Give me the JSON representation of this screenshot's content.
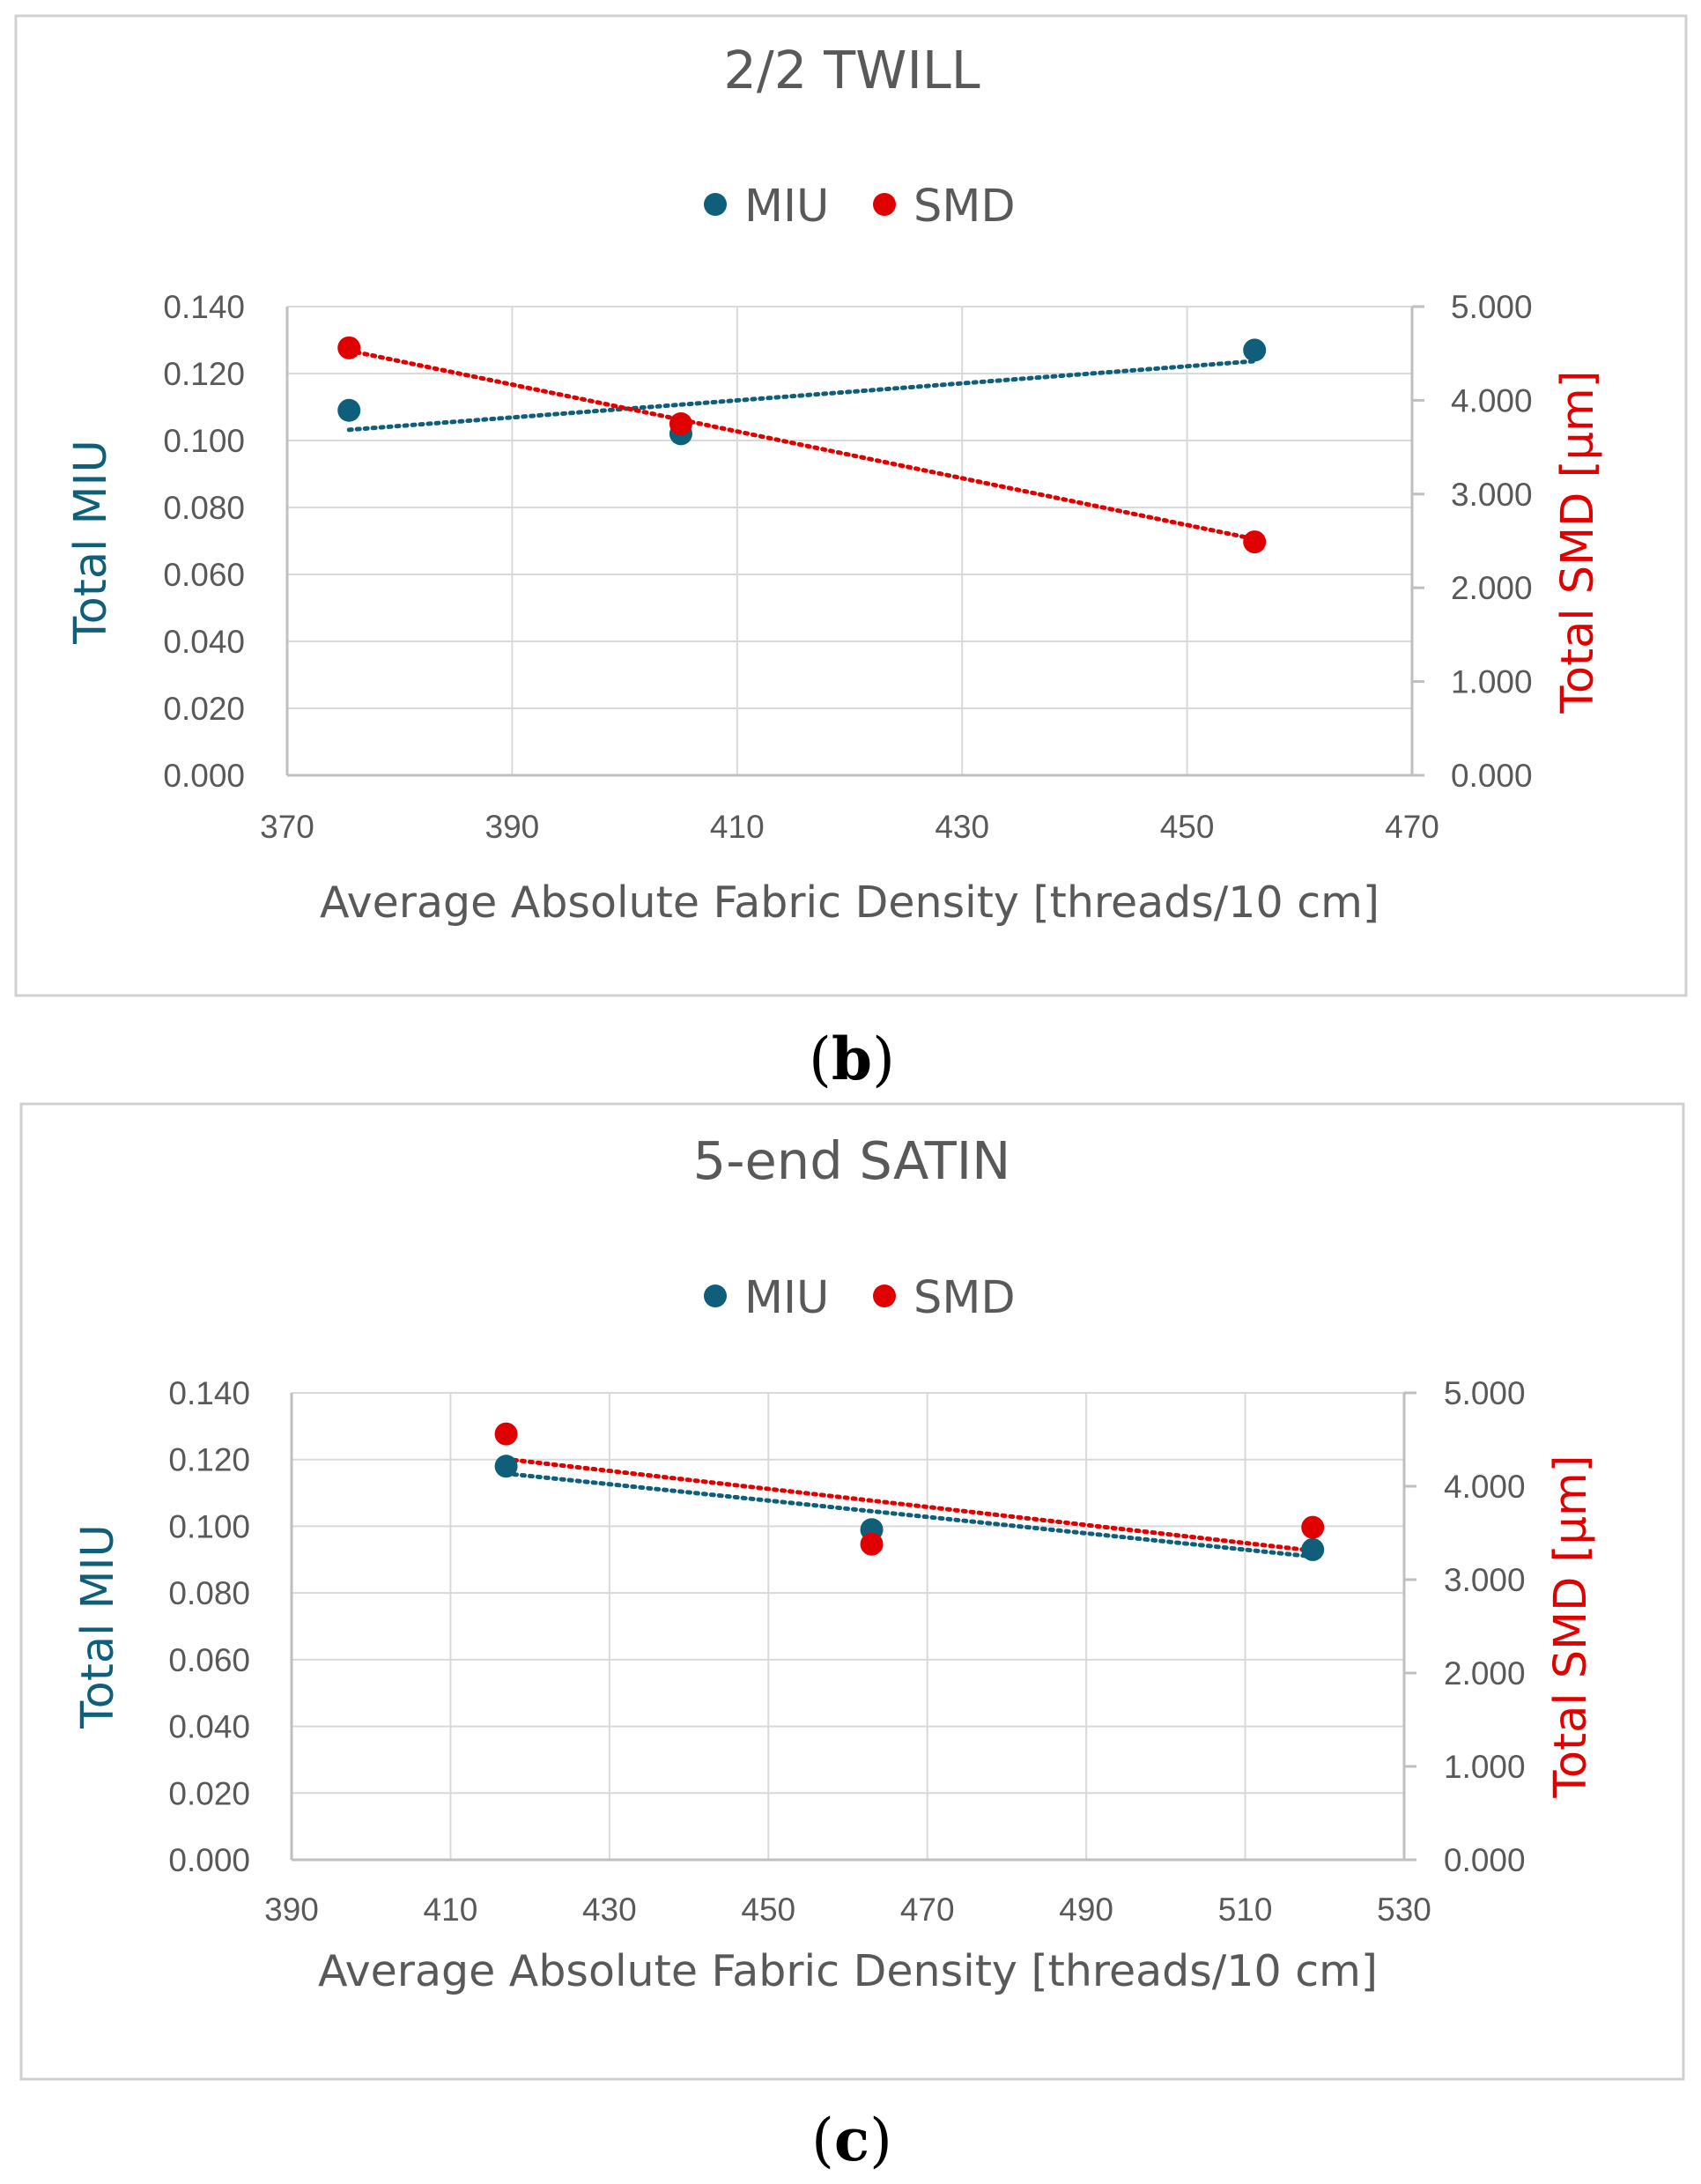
{
  "colors": {
    "miu": "#0f5f7a",
    "smd": "#e00000",
    "grid": "#d9d9d9",
    "frame": "#d0d0d0",
    "text": "#595959"
  },
  "chart_data": [
    {
      "type": "scatter",
      "title": "2/2 TWILL",
      "caption": {
        "open": "(",
        "letter": "b",
        "close": ")"
      },
      "legend": [
        "MIU",
        "SMD"
      ],
      "legend_position": "top-center",
      "grid": true,
      "xlabel": "Average Absolute Fabric Density [threads/10 cm]",
      "ylabel_left": "Total MIU",
      "ylabel_right": "Total SMD  [µm]",
      "xlim": [
        370,
        470
      ],
      "ylim_left": [
        0,
        0.14
      ],
      "ylim_right": [
        0,
        5
      ],
      "x_ticks": [
        "370",
        "390",
        "410",
        "430",
        "450",
        "470"
      ],
      "y_ticks_left": [
        "0.000",
        "0.020",
        "0.040",
        "0.060",
        "0.080",
        "0.100",
        "0.120",
        "0.140"
      ],
      "y_ticks_right": [
        "0.000",
        "1.000",
        "2.000",
        "3.000",
        "4.000",
        "5.000"
      ],
      "series": [
        {
          "name": "MIU",
          "axis": "left",
          "x": [
            375.5,
            405,
            456
          ],
          "y": [
            0.109,
            0.102,
            0.127
          ],
          "trend": [
            [
              375.5,
              0.1032
            ],
            [
              456,
              0.1237
            ]
          ]
        },
        {
          "name": "SMD",
          "axis": "right",
          "x": [
            375.5,
            405,
            456
          ],
          "y": [
            4.56,
            3.75,
            2.49
          ],
          "trend": [
            [
              375.5,
              4.53
            ],
            [
              456,
              2.52
            ]
          ]
        }
      ]
    },
    {
      "type": "scatter",
      "title": "5-end SATIN",
      "caption": {
        "open": "(",
        "letter": "c",
        "close": ")"
      },
      "legend": [
        "MIU",
        "SMD"
      ],
      "legend_position": "top-center",
      "grid": true,
      "xlabel": "Average Absolute Fabric Density [threads/10 cm]",
      "ylabel_left": "Total MIU",
      "ylabel_right": "Total SMD  [µm]",
      "xlim": [
        390,
        530
      ],
      "ylim_left": [
        0,
        0.14
      ],
      "ylim_right": [
        0,
        5
      ],
      "x_ticks": [
        "390",
        "410",
        "430",
        "450",
        "470",
        "490",
        "510",
        "530"
      ],
      "y_ticks_left": [
        "0.000",
        "0.020",
        "0.040",
        "0.060",
        "0.080",
        "0.100",
        "0.120",
        "0.140"
      ],
      "y_ticks_right": [
        "0.000",
        "1.000",
        "2.000",
        "3.000",
        "4.000",
        "5.000"
      ],
      "series": [
        {
          "name": "MIU",
          "axis": "left",
          "x": [
            417,
            463,
            518.5
          ],
          "y": [
            0.118,
            0.099,
            0.093
          ],
          "trend": [
            [
              417,
              0.1158
            ],
            [
              518.5,
              0.0909
            ]
          ]
        },
        {
          "name": "SMD",
          "axis": "right",
          "x": [
            417,
            463,
            518.5
          ],
          "y": [
            4.56,
            3.38,
            3.56
          ],
          "trend": [
            [
              417,
              4.29
            ],
            [
              518.5,
              3.31
            ]
          ]
        }
      ]
    }
  ]
}
